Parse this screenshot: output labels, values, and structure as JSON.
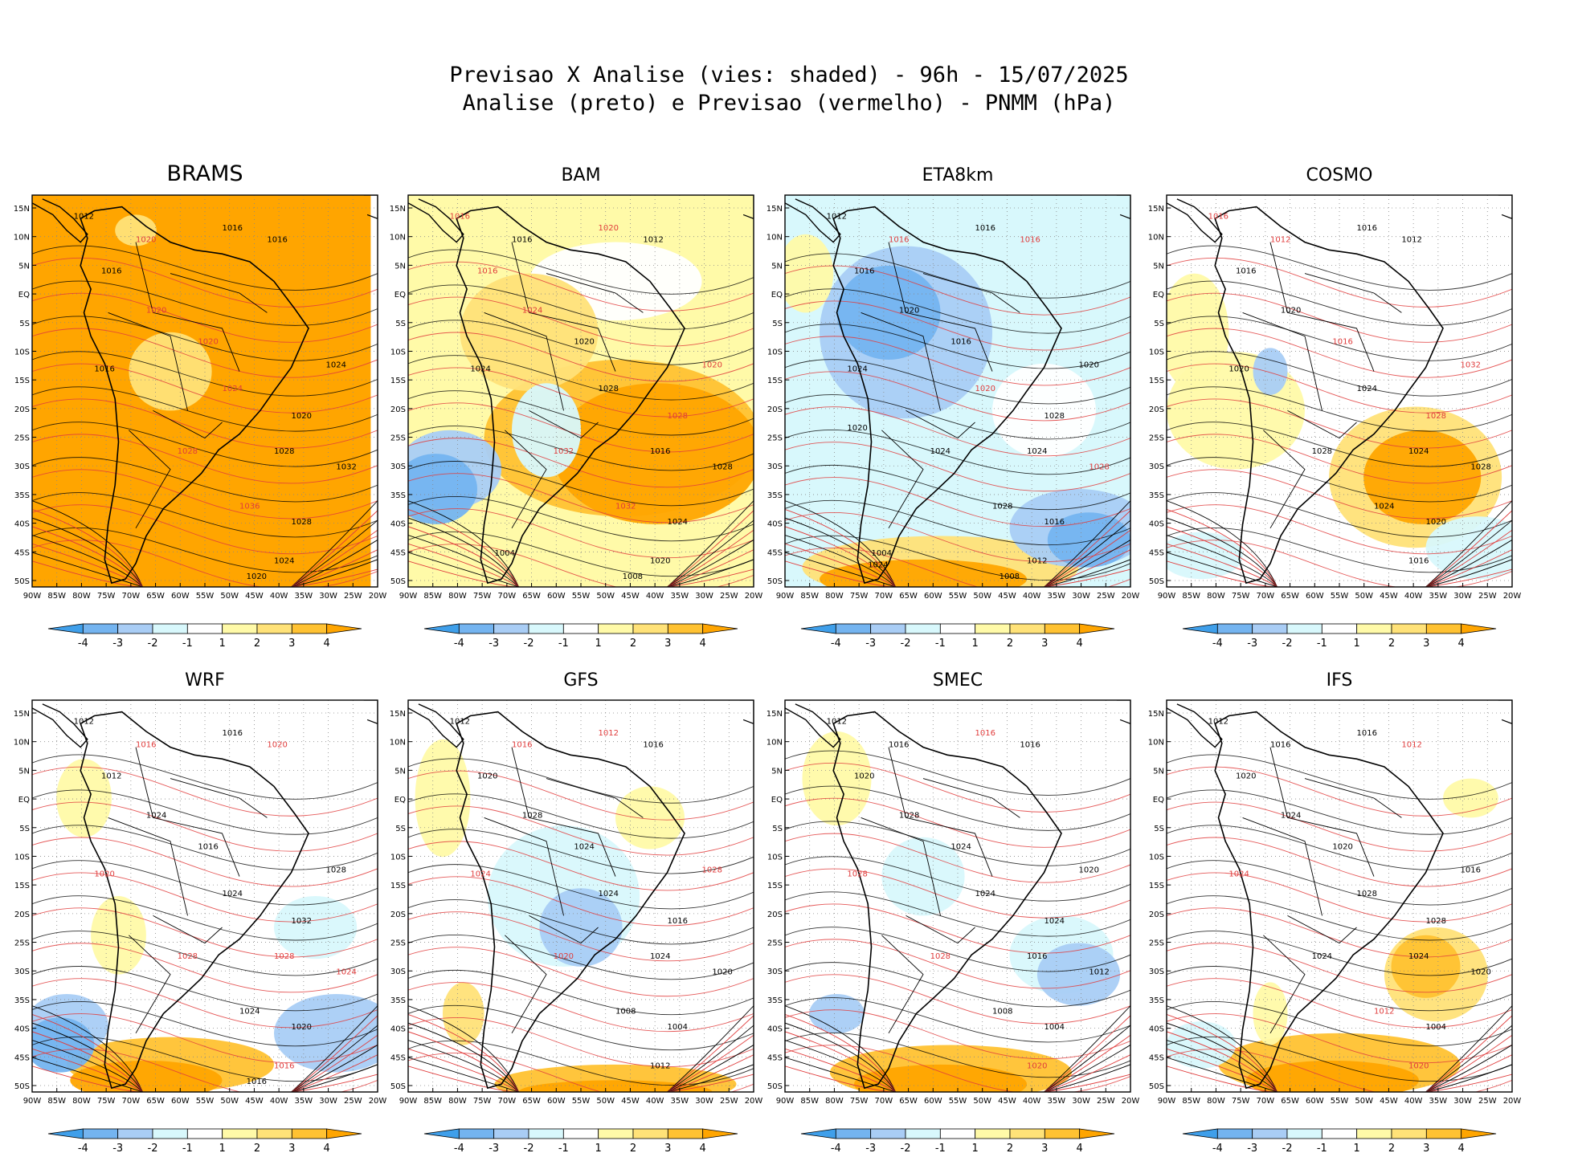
{
  "figure": {
    "title_line1": "Previsao X Analise (vies: shaded) - 96h - 15/07/2025",
    "title_line2": "Analise (preto) e Previsao (vermelho) - PNMM (hPa)"
  },
  "axes": {
    "lat_ticks": [
      "15N",
      "10N",
      "5N",
      "EQ",
      "5S",
      "10S",
      "15S",
      "20S",
      "25S",
      "30S",
      "35S",
      "40S",
      "45S",
      "50S"
    ],
    "lon_ticks": [
      "90W",
      "85W",
      "80W",
      "75W",
      "70W",
      "65W",
      "60W",
      "55W",
      "50W",
      "45W",
      "40W",
      "35W",
      "30W",
      "25W",
      "20W"
    ]
  },
  "colorbar": {
    "labels": [
      "-4",
      "-3",
      "-2",
      "-1",
      "1",
      "2",
      "3",
      "4"
    ],
    "colors": [
      "#3f9fea",
      "#74b4f0",
      "#a9cdf5",
      "#d8f8fc",
      "#ffffff",
      "#fffaa8",
      "#ffe278",
      "#ffc232",
      "#ffa500"
    ]
  },
  "colors": {
    "analysis_contour": "#000000",
    "forecast_contour": "#e03c3c",
    "land_bg": "#ffffff"
  },
  "panels": [
    {
      "name": "BRAMS",
      "labels": [
        {
          "t": "1012",
          "r": false
        },
        {
          "t": "1016",
          "r": false
        },
        {
          "t": "1016",
          "r": false
        },
        {
          "t": "1020",
          "r": true
        },
        {
          "t": "1016",
          "r": false
        },
        {
          "t": "1020",
          "r": true
        },
        {
          "t": "1020",
          "r": true
        },
        {
          "t": "1016",
          "r": false
        },
        {
          "t": "1024",
          "r": true
        },
        {
          "t": "1028",
          "r": true
        },
        {
          "t": "1020",
          "r": false
        },
        {
          "t": "1024",
          "r": false
        },
        {
          "t": "1028",
          "r": false
        },
        {
          "t": "1032",
          "r": false
        },
        {
          "t": "1036",
          "r": true
        },
        {
          "t": "1028",
          "r": false
        },
        {
          "t": "1024",
          "r": false
        },
        {
          "t": "1020",
          "r": false
        }
      ]
    },
    {
      "name": "BAM",
      "labels": [
        {
          "t": "1016",
          "r": true
        },
        {
          "t": "1020",
          "r": true
        },
        {
          "t": "1012",
          "r": false
        },
        {
          "t": "1016",
          "r": false
        },
        {
          "t": "1016",
          "r": true
        },
        {
          "t": "1020",
          "r": false
        },
        {
          "t": "1024",
          "r": true
        },
        {
          "t": "1024",
          "r": false
        },
        {
          "t": "1028",
          "r": false
        },
        {
          "t": "1032",
          "r": true
        },
        {
          "t": "1028",
          "r": true
        },
        {
          "t": "1020",
          "r": true
        },
        {
          "t": "1016",
          "r": false
        },
        {
          "t": "1028",
          "r": false
        },
        {
          "t": "1032",
          "r": true
        },
        {
          "t": "1024",
          "r": false
        },
        {
          "t": "1020",
          "r": false
        },
        {
          "t": "1008",
          "r": false
        },
        {
          "t": "1004",
          "r": false
        }
      ]
    },
    {
      "name": "ETA8km",
      "labels": [
        {
          "t": "1012",
          "r": false
        },
        {
          "t": "1016",
          "r": false
        },
        {
          "t": "1016",
          "r": true
        },
        {
          "t": "1016",
          "r": true
        },
        {
          "t": "1016",
          "r": false
        },
        {
          "t": "1016",
          "r": false
        },
        {
          "t": "1020",
          "r": false
        },
        {
          "t": "1024",
          "r": false
        },
        {
          "t": "1020",
          "r": true
        },
        {
          "t": "1024",
          "r": false
        },
        {
          "t": "1028",
          "r": false
        },
        {
          "t": "1020",
          "r": false
        },
        {
          "t": "1024",
          "r": false
        },
        {
          "t": "1028",
          "r": true
        },
        {
          "t": "1028",
          "r": false
        },
        {
          "t": "1016",
          "r": false
        },
        {
          "t": "1012",
          "r": false
        },
        {
          "t": "1008",
          "r": false
        },
        {
          "t": "1004",
          "r": false
        },
        {
          "t": "1024",
          "r": false
        },
        {
          "t": "1020",
          "r": false
        }
      ]
    },
    {
      "name": "COSMO",
      "labels": [
        {
          "t": "1016",
          "r": true
        },
        {
          "t": "1016",
          "r": false
        },
        {
          "t": "1012",
          "r": false
        },
        {
          "t": "1012",
          "r": true
        },
        {
          "t": "1016",
          "r": false
        },
        {
          "t": "1016",
          "r": true
        },
        {
          "t": "1020",
          "r": false
        },
        {
          "t": "1020",
          "r": false
        },
        {
          "t": "1024",
          "r": false
        },
        {
          "t": "1028",
          "r": false
        },
        {
          "t": "1028",
          "r": true
        },
        {
          "t": "1032",
          "r": true
        },
        {
          "t": "1024",
          "r": false
        },
        {
          "t": "1028",
          "r": false
        },
        {
          "t": "1024",
          "r": false
        },
        {
          "t": "1020",
          "r": false
        },
        {
          "t": "1016",
          "r": false
        }
      ]
    },
    {
      "name": "WRF",
      "labels": [
        {
          "t": "1012",
          "r": false
        },
        {
          "t": "1016",
          "r": false
        },
        {
          "t": "1020",
          "r": true
        },
        {
          "t": "1016",
          "r": true
        },
        {
          "t": "1012",
          "r": false
        },
        {
          "t": "1016",
          "r": false
        },
        {
          "t": "1024",
          "r": false
        },
        {
          "t": "1020",
          "r": true
        },
        {
          "t": "1024",
          "r": false
        },
        {
          "t": "1028",
          "r": true
        },
        {
          "t": "1032",
          "r": false
        },
        {
          "t": "1028",
          "r": false
        },
        {
          "t": "1028",
          "r": true
        },
        {
          "t": "1024",
          "r": true
        },
        {
          "t": "1024",
          "r": false
        },
        {
          "t": "1020",
          "r": false
        },
        {
          "t": "1016",
          "r": true
        },
        {
          "t": "1016",
          "r": false
        }
      ]
    },
    {
      "name": "GFS",
      "labels": [
        {
          "t": "1012",
          "r": false
        },
        {
          "t": "1012",
          "r": true
        },
        {
          "t": "1016",
          "r": false
        },
        {
          "t": "1016",
          "r": true
        },
        {
          "t": "1020",
          "r": false
        },
        {
          "t": "1024",
          "r": false
        },
        {
          "t": "1028",
          "r": false
        },
        {
          "t": "1024",
          "r": true
        },
        {
          "t": "1024",
          "r": false
        },
        {
          "t": "1020",
          "r": true
        },
        {
          "t": "1016",
          "r": false
        },
        {
          "t": "1028",
          "r": true
        },
        {
          "t": "1024",
          "r": false
        },
        {
          "t": "1020",
          "r": false
        },
        {
          "t": "1008",
          "r": false
        },
        {
          "t": "1004",
          "r": false
        },
        {
          "t": "1012",
          "r": false
        }
      ]
    },
    {
      "name": "SMEC",
      "labels": [
        {
          "t": "1012",
          "r": false
        },
        {
          "t": "1016",
          "r": true
        },
        {
          "t": "1016",
          "r": false
        },
        {
          "t": "1016",
          "r": false
        },
        {
          "t": "1020",
          "r": false
        },
        {
          "t": "1024",
          "r": false
        },
        {
          "t": "1028",
          "r": false
        },
        {
          "t": "1028",
          "r": true
        },
        {
          "t": "1024",
          "r": false
        },
        {
          "t": "1028",
          "r": true
        },
        {
          "t": "1024",
          "r": false
        },
        {
          "t": "1020",
          "r": false
        },
        {
          "t": "1016",
          "r": false
        },
        {
          "t": "1012",
          "r": false
        },
        {
          "t": "1008",
          "r": false
        },
        {
          "t": "1004",
          "r": false
        },
        {
          "t": "1020",
          "r": true
        }
      ]
    },
    {
      "name": "IFS",
      "labels": [
        {
          "t": "1012",
          "r": false
        },
        {
          "t": "1016",
          "r": false
        },
        {
          "t": "1012",
          "r": true
        },
        {
          "t": "1016",
          "r": false
        },
        {
          "t": "1020",
          "r": false
        },
        {
          "t": "1020",
          "r": false
        },
        {
          "t": "1024",
          "r": false
        },
        {
          "t": "1024",
          "r": true
        },
        {
          "t": "1028",
          "r": false
        },
        {
          "t": "1024",
          "r": false
        },
        {
          "t": "1028",
          "r": false
        },
        {
          "t": "1016",
          "r": false
        },
        {
          "t": "1024",
          "r": false
        },
        {
          "t": "1020",
          "r": false
        },
        {
          "t": "1012",
          "r": true
        },
        {
          "t": "1004",
          "r": false
        },
        {
          "t": "1020",
          "r": true
        }
      ]
    }
  ]
}
